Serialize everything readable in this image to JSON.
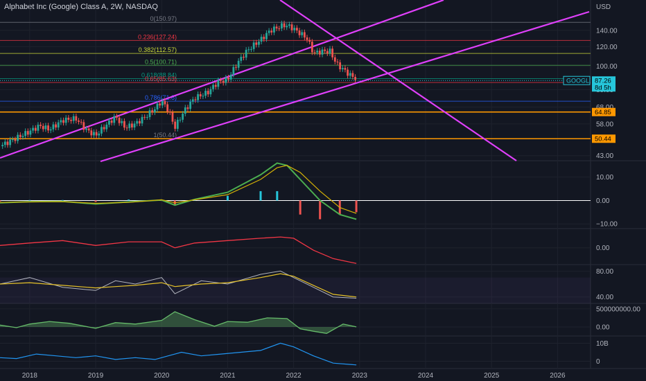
{
  "header": {
    "title": "Alphabet Inc (Google) Class A, 2W, NASDAQ"
  },
  "colors": {
    "background": "#131722",
    "grid": "#1e222d",
    "up": "#26a69a",
    "down": "#ef5350",
    "magenta": "#e040fb",
    "orange": "#ff9800",
    "text": "#b2b5be"
  },
  "chart_data": {
    "type": "candlestick",
    "symbol": "GOOGL",
    "price_axis": {
      "unit": "USD",
      "scale": "log",
      "ticks": [
        "140.00",
        "120.00",
        "100.00",
        "80.00",
        "68.00",
        "58.00",
        "43.00"
      ],
      "range": [
        41,
        170
      ]
    },
    "time_axis": {
      "labels": [
        "2018",
        "2019",
        "2020",
        "2021",
        "2022",
        "2023",
        "2024",
        "2025",
        "2026"
      ],
      "range": [
        2017.55,
        2026.5
      ]
    },
    "price_series": {
      "x": [
        2017.55,
        2017.75,
        2018.0,
        2018.15,
        2018.3,
        2018.5,
        2018.7,
        2018.85,
        2019.0,
        2019.15,
        2019.3,
        2019.45,
        2019.6,
        2019.75,
        2019.9,
        2020.0,
        2020.1,
        2020.2,
        2020.35,
        2020.5,
        2020.7,
        2020.85,
        2021.0,
        2021.15,
        2021.3,
        2021.5,
        2021.65,
        2021.85,
        2021.95,
        2022.1,
        2022.2,
        2022.3,
        2022.45,
        2022.55,
        2022.65,
        2022.75,
        2022.85,
        2022.95
      ],
      "y": [
        47,
        50,
        54,
        57,
        55,
        60,
        61,
        55,
        52,
        57,
        62,
        56,
        58,
        62,
        67,
        72,
        66,
        56,
        66,
        74,
        78,
        86,
        88,
        103,
        116,
        128,
        140,
        147,
        145,
        136,
        130,
        113,
        115,
        115,
        102,
        97,
        92,
        88.8
      ]
    },
    "last_price": {
      "symbol": "GOOGL",
      "value": "87.26",
      "countdown": "8d 5h"
    },
    "horizontal_levels": [
      {
        "label": "64.85",
        "value": 64.85
      },
      {
        "label": "50.44",
        "value": 50.44
      }
    ],
    "fibonacci": [
      {
        "label": "0(150.97)",
        "value": 150.97
      },
      {
        "label": "0.236(127.24)",
        "value": 127.24
      },
      {
        "label": "0.382(112.57)",
        "value": 112.57
      },
      {
        "label": "0.5(100.71)",
        "value": 100.71
      },
      {
        "label": "0.618(88.84)",
        "value": 88.84
      },
      {
        "label": "0.65(85.63)",
        "value": 85.63
      },
      {
        "label": "0.786(71.8)",
        "value": 71.8
      },
      {
        "label": "1(50.44)",
        "value": 50.44
      }
    ],
    "indicators": [
      {
        "name": "macd",
        "ticks": [
          "10.00",
          "0.00",
          "−10.00"
        ],
        "range": [
          -12,
          17
        ],
        "x": [
          2017.55,
          2018.0,
          2018.5,
          2019.0,
          2019.5,
          2020.0,
          2020.2,
          2020.5,
          2021.0,
          2021.5,
          2021.75,
          2021.9,
          2022.1,
          2022.4,
          2022.7,
          2022.95
        ],
        "macd": [
          -1,
          -0.5,
          -0.4,
          -1.5,
          -0.6,
          0.2,
          -2,
          0.5,
          3.5,
          11,
          16,
          15,
          9,
          0,
          -6,
          -8
        ],
        "signal": [
          -0.8,
          -0.6,
          -0.5,
          -1.2,
          -0.8,
          0.3,
          -1,
          0.3,
          2.5,
          9,
          14,
          15,
          12,
          4,
          -3,
          -5.5
        ]
      },
      {
        "name": "oscillator",
        "ticks": [
          "0.00"
        ],
        "range": [
          -7,
          8
        ],
        "x": [
          2017.55,
          2018.0,
          2018.5,
          2019.0,
          2019.5,
          2020.0,
          2020.2,
          2020.5,
          2021.0,
          2021.5,
          2021.8,
          2022.0,
          2022.3,
          2022.6,
          2022.95
        ],
        "value": [
          1,
          2,
          3,
          1,
          2.5,
          2.5,
          0,
          2,
          3,
          4,
          4.5,
          4,
          -1,
          -4.5,
          -6.5
        ]
      },
      {
        "name": "rsi",
        "ticks": [
          "80.00",
          "40.00"
        ],
        "range": [
          30,
          90
        ],
        "x": [
          2017.55,
          2018.0,
          2018.5,
          2019.0,
          2019.3,
          2019.6,
          2020.0,
          2020.2,
          2020.6,
          2021.0,
          2021.5,
          2021.8,
          2022.0,
          2022.3,
          2022.6,
          2022.95
        ],
        "value": [
          60,
          70,
          55,
          50,
          65,
          60,
          70,
          45,
          65,
          60,
          75,
          80,
          70,
          55,
          40,
          38
        ],
        "ma": [
          60,
          62,
          58,
          54,
          56,
          58,
          62,
          56,
          60,
          62,
          70,
          76,
          72,
          58,
          44,
          40
        ]
      },
      {
        "name": "volume-oscillator",
        "ticks": [
          "500000000.00",
          "0.00"
        ],
        "range": [
          -250000000,
          650000000
        ],
        "x": [
          2017.55,
          2017.8,
          2018.0,
          2018.3,
          2018.6,
          2019.0,
          2019.3,
          2019.6,
          2020.0,
          2020.2,
          2020.5,
          2020.8,
          2021.0,
          2021.3,
          2021.6,
          2021.9,
          2022.1,
          2022.3,
          2022.5,
          2022.75,
          2022.95
        ],
        "value": [
          50000000,
          -20000000,
          80000000,
          150000000,
          100000000,
          -40000000,
          120000000,
          80000000,
          180000000,
          420000000,
          200000000,
          20000000,
          150000000,
          130000000,
          250000000,
          230000000,
          -50000000,
          -120000000,
          -180000000,
          80000000,
          0
        ]
      },
      {
        "name": "volume-line",
        "ticks": [
          "10B",
          "0"
        ],
        "range": [
          -4000000000,
          14000000000
        ],
        "x": [
          2017.55,
          2017.8,
          2018.1,
          2018.4,
          2018.7,
          2019.0,
          2019.3,
          2019.6,
          2019.9,
          2020.1,
          2020.3,
          2020.6,
          2020.9,
          2021.2,
          2021.5,
          2021.8,
          2022.0,
          2022.3,
          2022.6,
          2022.95
        ],
        "value": [
          2000000000,
          1500000000,
          4000000000,
          3000000000,
          2000000000,
          3000000000,
          1000000000,
          2000000000,
          1000000000,
          3000000000,
          5000000000,
          3000000000,
          4000000000,
          5000000000,
          6000000000,
          10000000000,
          8000000000,
          3000000000,
          -1000000000,
          -2000000000
        ]
      }
    ]
  }
}
